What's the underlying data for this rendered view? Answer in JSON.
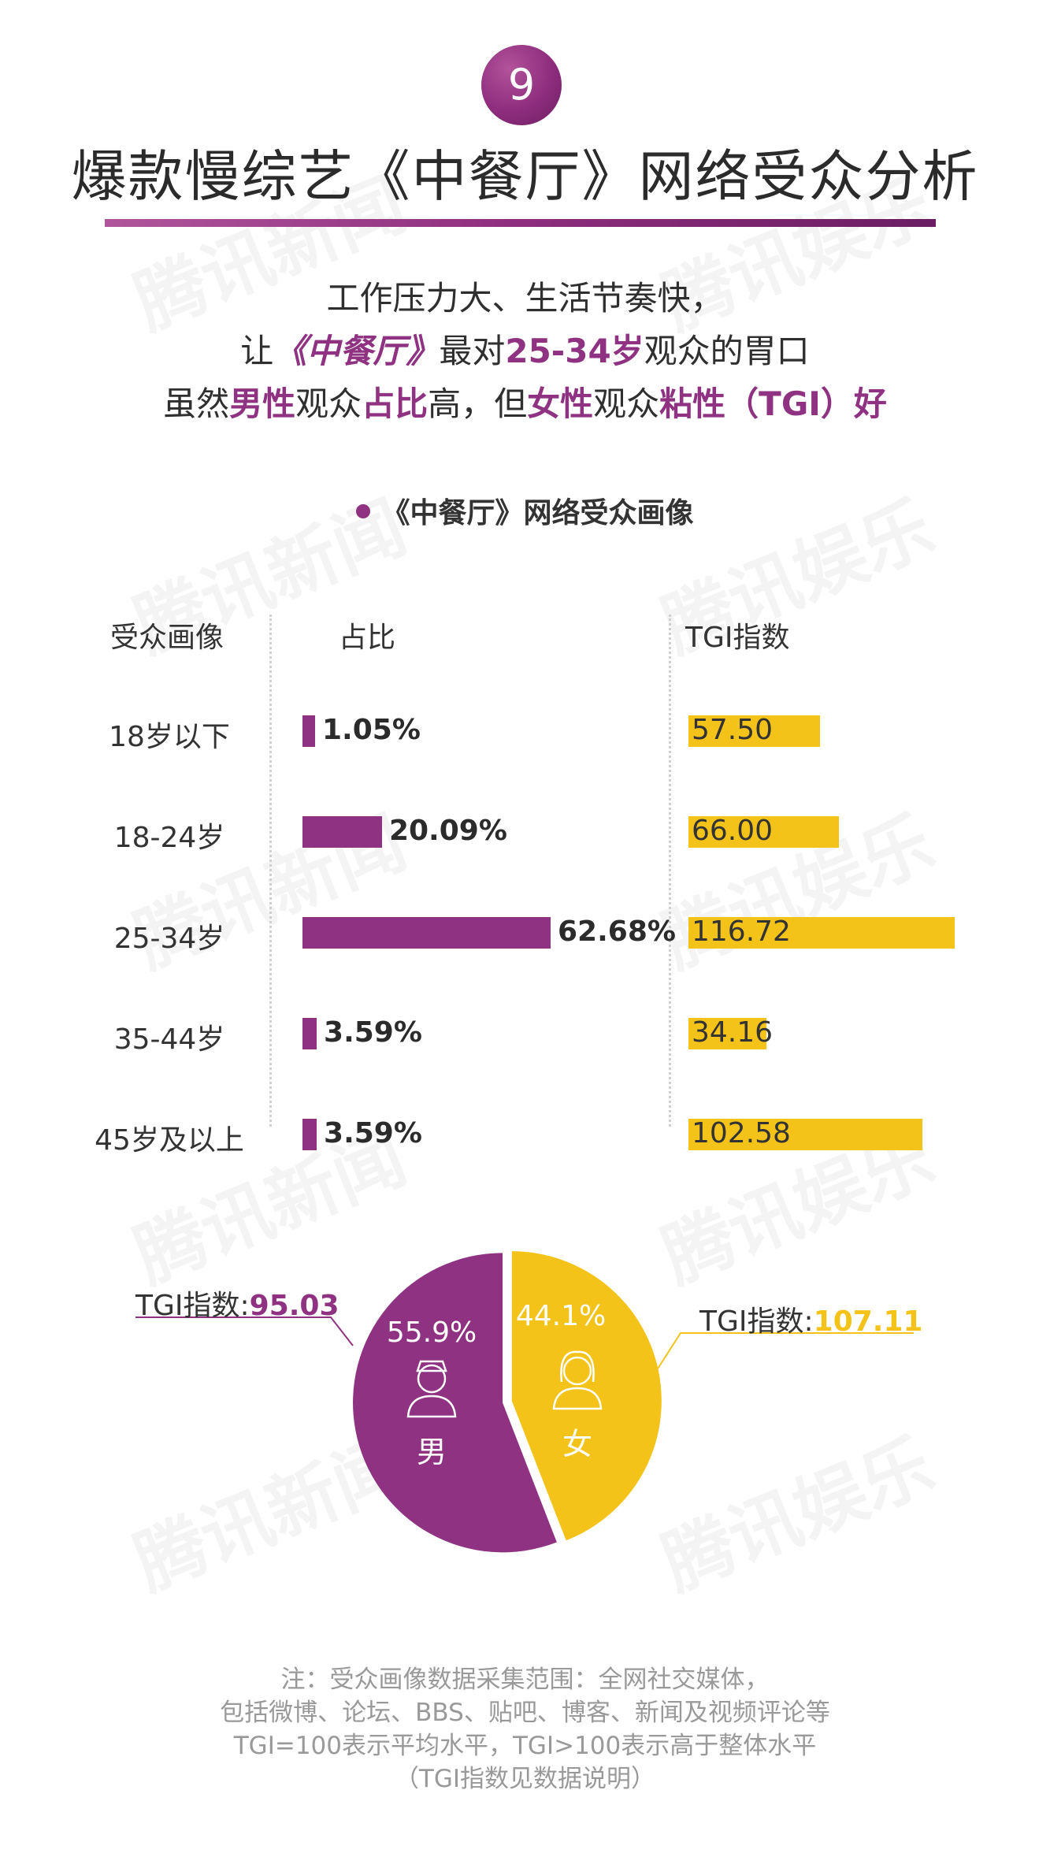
{
  "badge_number": "9",
  "title": "爆款慢综艺《中餐厅》网络受众分析",
  "intro": {
    "line1": "工作压力大、生活节奏快，",
    "line2": {
      "a": "让",
      "b": "《中餐厅》",
      "c": "最对",
      "d": "25-34岁",
      "e": "观众的胃口"
    },
    "line3": {
      "a": "虽然",
      "b": "男性",
      "c": "观众",
      "d": "占比",
      "e": "高，但",
      "f": "女性",
      "g": "观众",
      "h": "粘性（TGI）好"
    }
  },
  "section_title": "《中餐厅》网络受众画像",
  "colors": {
    "purple": "#8e3281",
    "yellow": "#f3c31a"
  },
  "chart_data": [
    {
      "type": "bar",
      "orientation": "horizontal",
      "columns": {
        "label": "受众画像",
        "share": "占比",
        "tgi": "TGI指数"
      },
      "categories": [
        "18岁以下",
        "18-24岁",
        "25-34岁",
        "35-44岁",
        "45岁及以上"
      ],
      "series": [
        {
          "name": "占比",
          "values": [
            1.05,
            20.09,
            62.68,
            3.59,
            3.59
          ],
          "labels": [
            "1.05%",
            "20.09%",
            "62.68%",
            "3.59%",
            "3.59%"
          ]
        },
        {
          "name": "TGI指数",
          "values": [
            57.5,
            66.0,
            116.72,
            34.16,
            102.58
          ],
          "labels": [
            "57.50",
            "66.00",
            "116.72",
            "34.16",
            "102.58"
          ]
        }
      ]
    },
    {
      "type": "pie",
      "slices": [
        {
          "name": "男",
          "value": 55.9,
          "label": "55.9%",
          "tgi_label": "TGI指数:",
          "tgi_value": "95.03",
          "color": "#8e3281"
        },
        {
          "name": "女",
          "value": 44.1,
          "label": "44.1%",
          "tgi_label": "TGI指数:",
          "tgi_value": "107.11",
          "color": "#f3c31a"
        }
      ]
    }
  ],
  "watermark_text": "腾讯新闻",
  "watermark_text2": "腾讯娱乐",
  "notes": [
    "注：受众画像数据采集范围：全网社交媒体，",
    "包括微博、论坛、BBS、贴吧、博客、新闻及视频评论等",
    "TGI=100表示平均水平，TGI>100表示高于整体水平",
    "（TGI指数见数据说明）"
  ]
}
